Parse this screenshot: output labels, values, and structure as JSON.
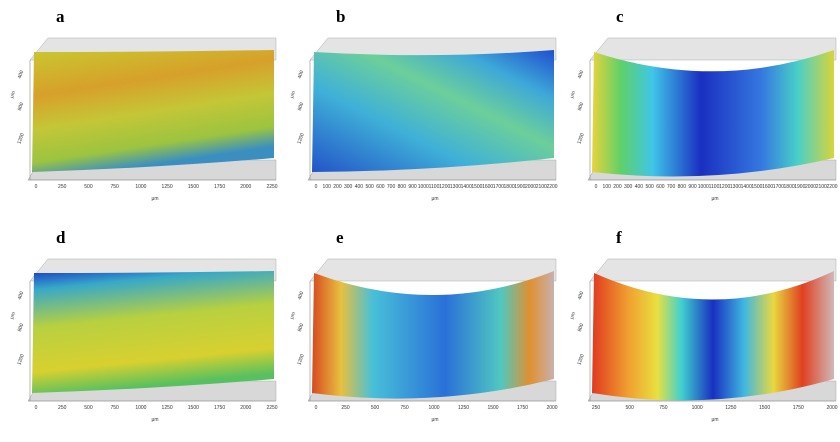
{
  "panels": [
    {
      "label": "a",
      "x_axis_label": "μm",
      "y_axis_label": "μm",
      "x_ticks": [
        "0",
        "250",
        "500",
        "750",
        "1000",
        "1250",
        "1500",
        "1750",
        "2000",
        "2250"
      ],
      "y_ticks": [
        "400",
        "800",
        "1200"
      ]
    },
    {
      "label": "b",
      "x_axis_label": "μm",
      "y_axis_label": "μm",
      "x_ticks": [
        "0",
        "100",
        "200",
        "300",
        "400",
        "500",
        "600",
        "700",
        "800",
        "900",
        "1000",
        "1100",
        "1200",
        "1300",
        "1400",
        "1500",
        "1600",
        "1700",
        "1800",
        "1900",
        "2000",
        "2100",
        "2200"
      ],
      "y_ticks": [
        "400",
        "800",
        "1200"
      ]
    },
    {
      "label": "c",
      "x_axis_label": "μm",
      "y_axis_label": "μm",
      "x_ticks": [
        "0",
        "100",
        "200",
        "300",
        "400",
        "500",
        "600",
        "700",
        "800",
        "900",
        "1000",
        "1100",
        "1200",
        "1300",
        "1400",
        "1500",
        "1600",
        "1700",
        "1800",
        "1900",
        "2000",
        "2100",
        "2200"
      ],
      "y_ticks": [
        "400",
        "800",
        "1200"
      ]
    },
    {
      "label": "d",
      "x_axis_label": "μm",
      "y_axis_label": "μm",
      "x_ticks": [
        "0",
        "250",
        "500",
        "750",
        "1000",
        "1250",
        "1500",
        "1750",
        "2000",
        "2250"
      ],
      "y_ticks": [
        "400",
        "800",
        "1200"
      ]
    },
    {
      "label": "e",
      "x_axis_label": "μm",
      "y_axis_label": "μm",
      "x_ticks": [
        "0",
        "250",
        "500",
        "750",
        "1000",
        "1250",
        "1500",
        "1750",
        "2000"
      ],
      "y_ticks": [
        "400",
        "800",
        "1200"
      ]
    },
    {
      "label": "f",
      "x_axis_label": "μm",
      "y_axis_label": "μm",
      "x_ticks": [
        "250",
        "500",
        "750",
        "1000",
        "1250",
        "1500",
        "1750",
        "2000"
      ],
      "y_ticks": [
        "400",
        "800",
        "1200"
      ]
    }
  ]
}
